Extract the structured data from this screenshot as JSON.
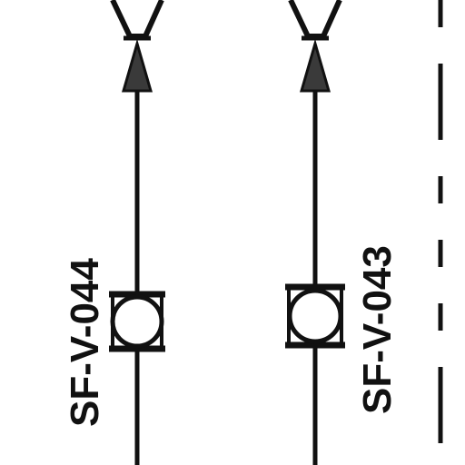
{
  "diagram": {
    "colors": {
      "line": "#111111",
      "arrow_fill": "#3a3a3a",
      "background": "#ffffff"
    },
    "valves": [
      {
        "tag": "SF-V-044",
        "symbol": "ball-valve-icon"
      },
      {
        "tag": "SF-V-043",
        "symbol": "ball-valve-icon"
      }
    ],
    "connectors": [
      {
        "symbol": "reducer-cone-icon"
      },
      {
        "symbol": "reducer-cone-icon"
      }
    ],
    "flow_arrows": [
      {
        "direction": "up"
      },
      {
        "direction": "up"
      }
    ],
    "boundary": {
      "style": "dashed"
    }
  }
}
